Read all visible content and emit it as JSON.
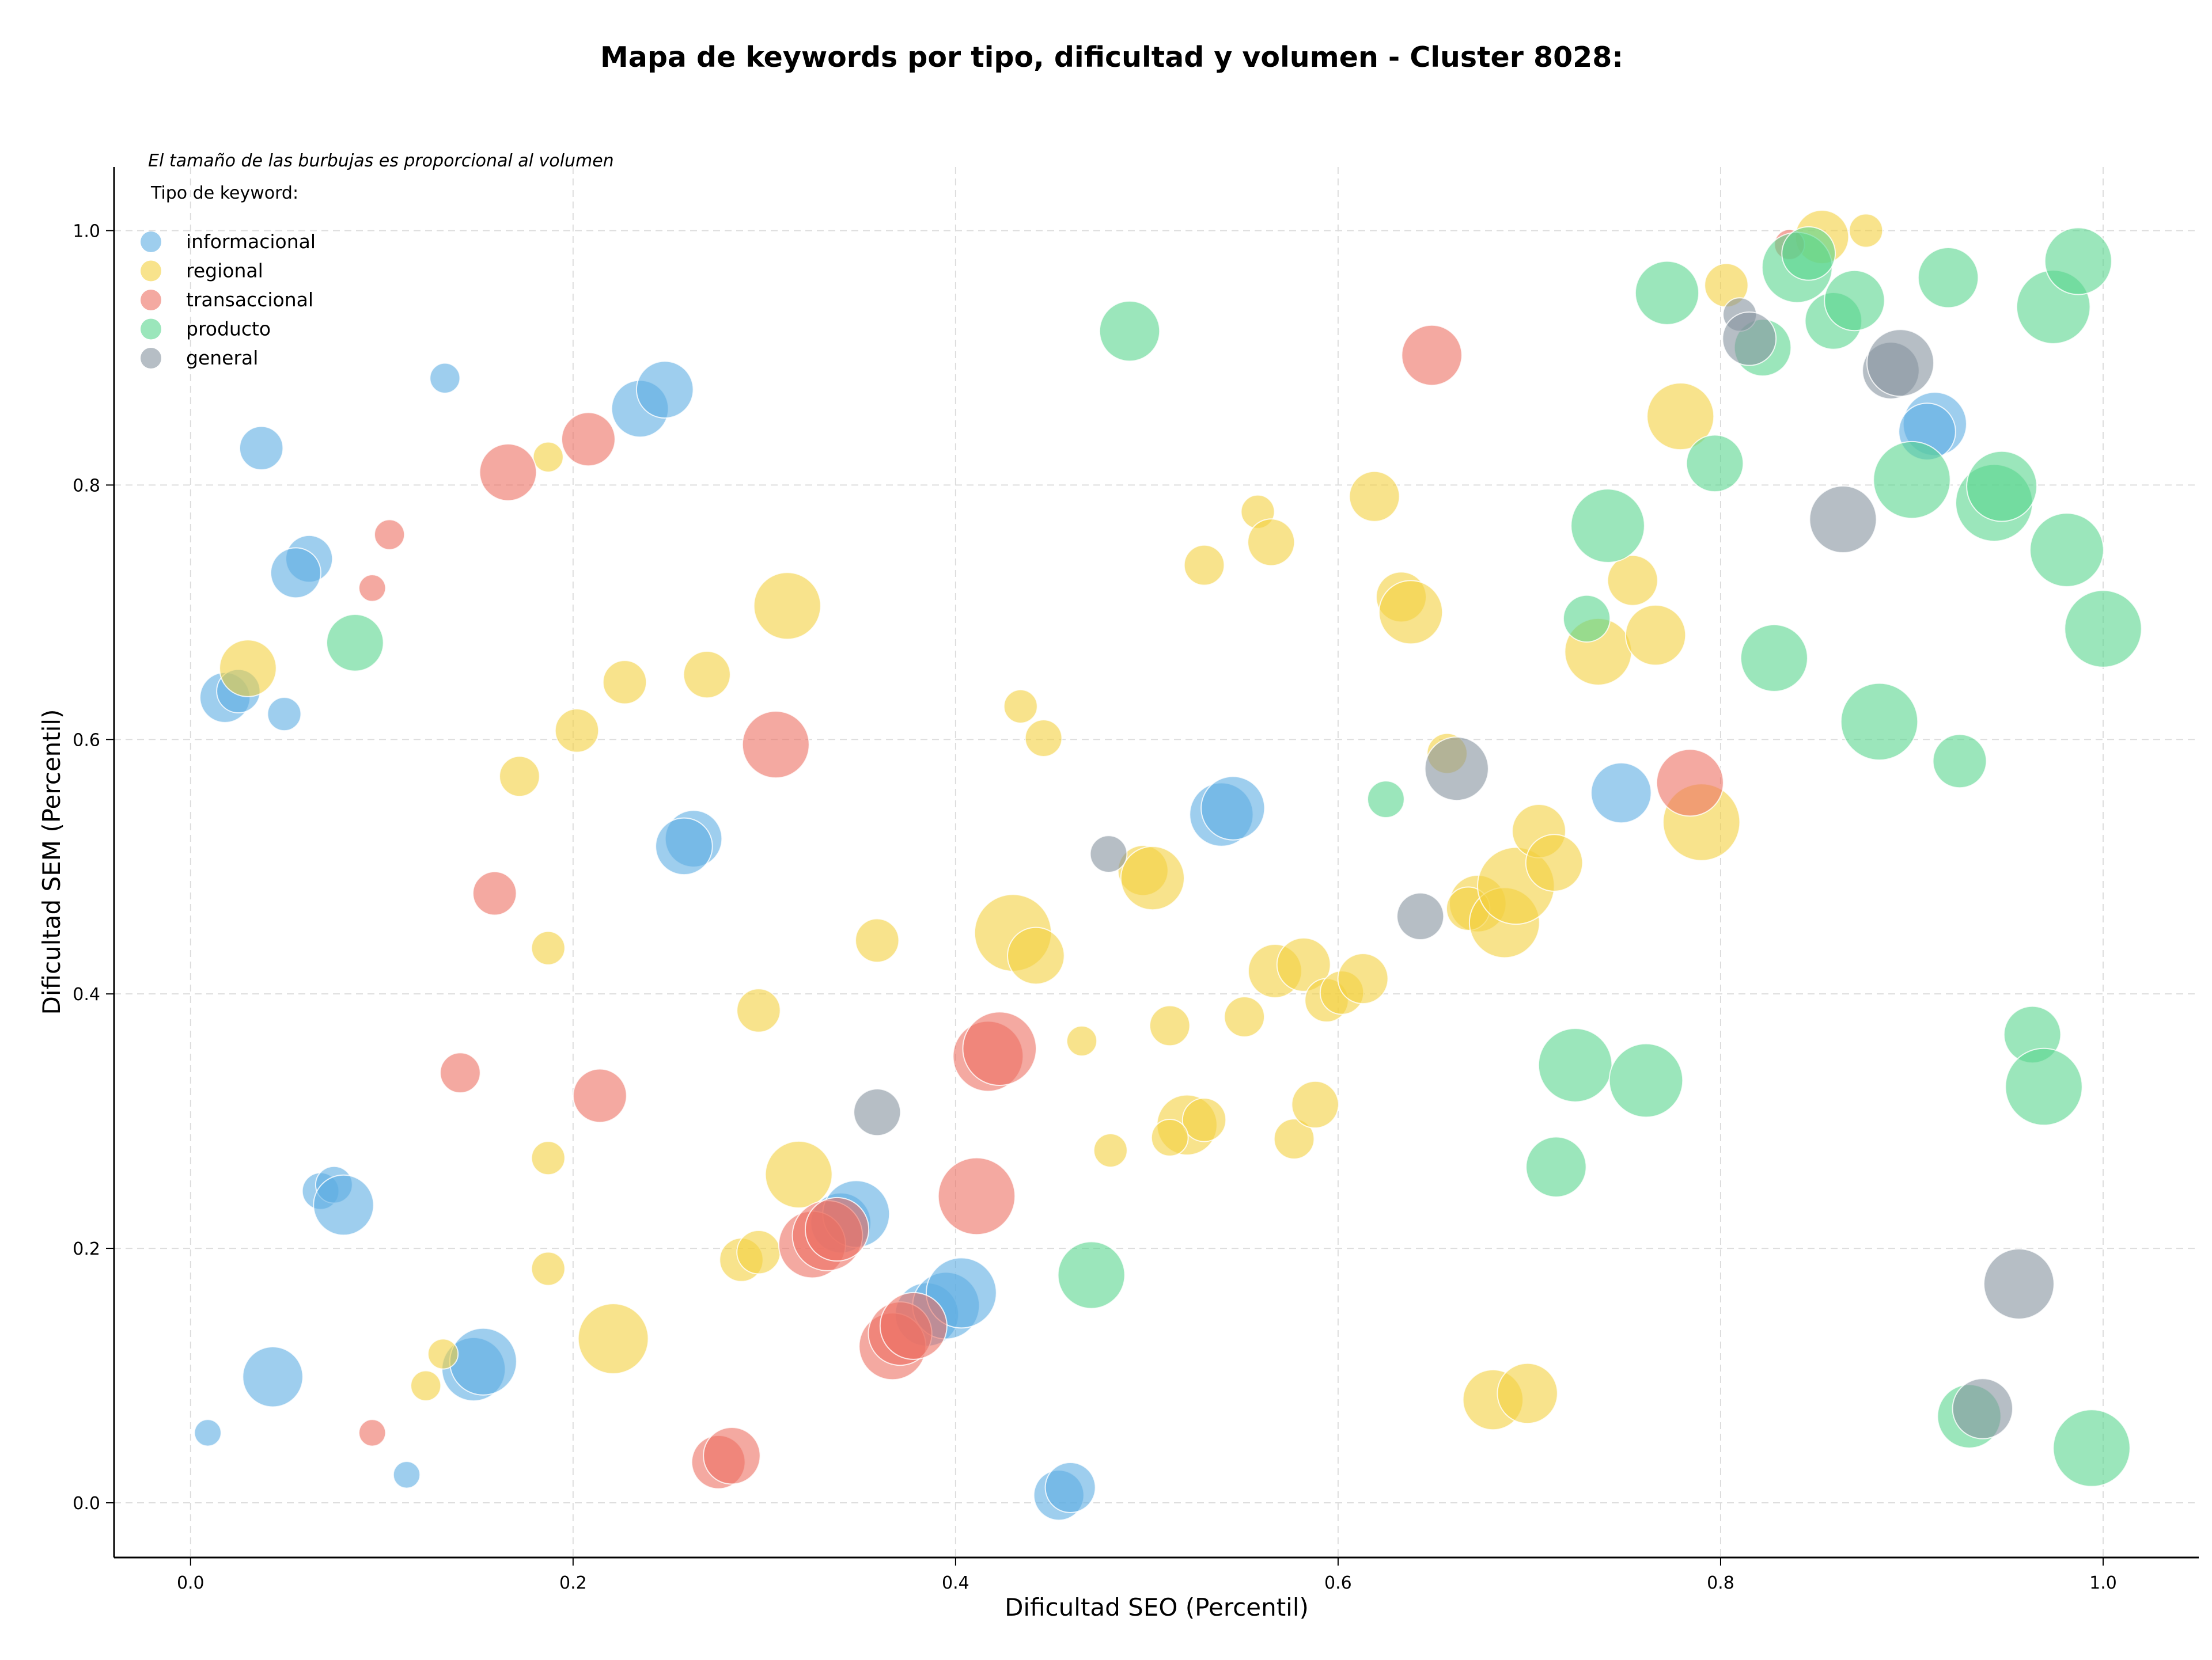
{
  "chart_data": {
    "type": "scatter",
    "title": "Mapa de keywords por tipo, dificultad y volumen - Cluster 8028:",
    "xlabel": "Dificultad SEO (Percentil)",
    "ylabel": "Dificultad SEM (Percentil)",
    "xlim": [
      -0.04,
      1.05
    ],
    "ylim": [
      -0.043,
      1.05
    ],
    "xticks": [
      0.0,
      0.2,
      0.4,
      0.6,
      0.8,
      1.0
    ],
    "yticks": [
      0.0,
      0.2,
      0.4,
      0.6,
      0.8,
      1.0
    ],
    "xtick_labels": [
      "0.0",
      "0.2",
      "0.4",
      "0.6",
      "0.8",
      "1.0"
    ],
    "ytick_labels": [
      "0.0",
      "0.2",
      "0.4",
      "0.6",
      "0.8",
      "1.0"
    ],
    "grid": true,
    "legend": {
      "placement": "top-left",
      "note": "El tamaño de las burbujas es proporcional al volumen",
      "title": "Tipo de keyword:"
    },
    "series": [
      {
        "name": "informacional",
        "color": "#5DADE2",
        "points": [
          [
            0.133,
            0.884,
            18
          ],
          [
            0.037,
            0.829,
            26
          ],
          [
            0.062,
            0.742,
            28
          ],
          [
            0.055,
            0.731,
            30
          ],
          [
            0.018,
            0.633,
            30
          ],
          [
            0.025,
            0.638,
            26
          ],
          [
            0.049,
            0.62,
            20
          ],
          [
            0.235,
            0.86,
            34
          ],
          [
            0.248,
            0.875,
            34
          ],
          [
            0.263,
            0.522,
            34
          ],
          [
            0.258,
            0.516,
            34
          ],
          [
            0.539,
            0.541,
            38
          ],
          [
            0.545,
            0.546,
            38
          ],
          [
            0.748,
            0.558,
            36
          ],
          [
            0.912,
            0.848,
            38
          ],
          [
            0.908,
            0.842,
            34
          ],
          [
            0.068,
            0.245,
            22
          ],
          [
            0.075,
            0.25,
            22
          ],
          [
            0.08,
            0.234,
            36
          ],
          [
            0.043,
            0.099,
            36
          ],
          [
            0.148,
            0.105,
            38
          ],
          [
            0.153,
            0.111,
            40
          ],
          [
            0.009,
            0.055,
            16
          ],
          [
            0.113,
            0.022,
            16
          ],
          [
            0.34,
            0.22,
            36
          ],
          [
            0.348,
            0.227,
            40
          ],
          [
            0.385,
            0.148,
            38
          ],
          [
            0.395,
            0.155,
            40
          ],
          [
            0.403,
            0.165,
            42
          ],
          [
            0.454,
            0.006,
            30
          ],
          [
            0.46,
            0.012,
            30
          ]
        ]
      },
      {
        "name": "regional",
        "color": "#F4D03F",
        "points": [
          [
            0.187,
            0.822,
            18
          ],
          [
            0.03,
            0.656,
            34
          ],
          [
            0.312,
            0.705,
            40
          ],
          [
            0.227,
            0.645,
            26
          ],
          [
            0.27,
            0.651,
            28
          ],
          [
            0.202,
            0.607,
            26
          ],
          [
            0.172,
            0.571,
            24
          ],
          [
            0.187,
            0.436,
            20
          ],
          [
            0.359,
            0.442,
            26
          ],
          [
            0.297,
            0.387,
            26
          ],
          [
            0.187,
            0.271,
            20
          ],
          [
            0.187,
            0.184,
            20
          ],
          [
            0.132,
            0.117,
            18
          ],
          [
            0.123,
            0.092,
            18
          ],
          [
            0.221,
            0.129,
            42
          ],
          [
            0.318,
            0.258,
            40
          ],
          [
            0.288,
            0.191,
            26
          ],
          [
            0.297,
            0.197,
            26
          ],
          [
            0.434,
            0.626,
            20
          ],
          [
            0.446,
            0.601,
            22
          ],
          [
            0.43,
            0.448,
            46
          ],
          [
            0.442,
            0.43,
            34
          ],
          [
            0.466,
            0.363,
            18
          ],
          [
            0.481,
            0.277,
            20
          ],
          [
            0.498,
            0.497,
            30
          ],
          [
            0.503,
            0.491,
            38
          ],
          [
            0.512,
            0.375,
            24
          ],
          [
            0.521,
            0.297,
            36
          ],
          [
            0.53,
            0.301,
            26
          ],
          [
            0.512,
            0.287,
            22
          ],
          [
            0.53,
            0.737,
            24
          ],
          [
            0.558,
            0.779,
            20
          ],
          [
            0.565,
            0.755,
            28
          ],
          [
            0.551,
            0.382,
            24
          ],
          [
            0.567,
            0.418,
            32
          ],
          [
            0.582,
            0.423,
            32
          ],
          [
            0.577,
            0.286,
            24
          ],
          [
            0.588,
            0.313,
            28
          ],
          [
            0.594,
            0.395,
            26
          ],
          [
            0.602,
            0.401,
            26
          ],
          [
            0.613,
            0.412,
            30
          ],
          [
            0.619,
            0.791,
            30
          ],
          [
            0.633,
            0.712,
            30
          ],
          [
            0.638,
            0.7,
            38
          ],
          [
            0.657,
            0.589,
            24
          ],
          [
            0.673,
            0.471,
            34
          ],
          [
            0.668,
            0.467,
            26
          ],
          [
            0.687,
            0.456,
            42
          ],
          [
            0.693,
            0.485,
            46
          ],
          [
            0.705,
            0.528,
            32
          ],
          [
            0.713,
            0.503,
            34
          ],
          [
            0.681,
            0.081,
            36
          ],
          [
            0.699,
            0.086,
            36
          ],
          [
            0.736,
            0.669,
            40
          ],
          [
            0.754,
            0.725,
            30
          ],
          [
            0.766,
            0.682,
            36
          ],
          [
            0.779,
            0.854,
            40
          ],
          [
            0.79,
            0.535,
            46
          ],
          [
            0.803,
            0.957,
            26
          ],
          [
            0.853,
            0.995,
            32
          ],
          [
            0.876,
            1.0,
            20
          ]
        ]
      },
      {
        "name": "transaccional",
        "color": "#EC7063",
        "points": [
          [
            0.166,
            0.81,
            34
          ],
          [
            0.208,
            0.836,
            32
          ],
          [
            0.104,
            0.761,
            18
          ],
          [
            0.095,
            0.719,
            16
          ],
          [
            0.306,
            0.596,
            40
          ],
          [
            0.159,
            0.479,
            26
          ],
          [
            0.141,
            0.338,
            24
          ],
          [
            0.214,
            0.32,
            32
          ],
          [
            0.095,
            0.055,
            16
          ],
          [
            0.276,
            0.032,
            32
          ],
          [
            0.283,
            0.037,
            34
          ],
          [
            0.325,
            0.203,
            40
          ],
          [
            0.333,
            0.21,
            42
          ],
          [
            0.338,
            0.215,
            38
          ],
          [
            0.367,
            0.123,
            40
          ],
          [
            0.371,
            0.133,
            38
          ],
          [
            0.378,
            0.139,
            40
          ],
          [
            0.417,
            0.351,
            42
          ],
          [
            0.423,
            0.357,
            44
          ],
          [
            0.411,
            0.241,
            46
          ],
          [
            0.649,
            0.902,
            36
          ],
          [
            0.784,
            0.566,
            40
          ],
          [
            0.836,
            0.989,
            18
          ]
        ]
      },
      {
        "name": "producto",
        "color": "#58D68D",
        "points": [
          [
            0.086,
            0.676,
            34
          ],
          [
            0.491,
            0.921,
            36
          ],
          [
            0.471,
            0.179,
            40
          ],
          [
            0.625,
            0.553,
            22
          ],
          [
            0.73,
            0.695,
            28
          ],
          [
            0.741,
            0.768,
            44
          ],
          [
            0.714,
            0.264,
            36
          ],
          [
            0.724,
            0.344,
            44
          ],
          [
            0.761,
            0.332,
            44
          ],
          [
            0.772,
            0.951,
            38
          ],
          [
            0.797,
            0.817,
            34
          ],
          [
            0.822,
            0.908,
            34
          ],
          [
            0.828,
            0.664,
            40
          ],
          [
            0.84,
            0.971,
            42
          ],
          [
            0.846,
            0.982,
            32
          ],
          [
            0.859,
            0.929,
            34
          ],
          [
            0.87,
            0.945,
            36
          ],
          [
            0.883,
            0.614,
            46
          ],
          [
            0.9,
            0.804,
            46
          ],
          [
            0.919,
            0.963,
            36
          ],
          [
            0.925,
            0.583,
            32
          ],
          [
            0.943,
            0.786,
            46
          ],
          [
            0.947,
            0.799,
            42
          ],
          [
            0.93,
            0.068,
            38
          ],
          [
            0.963,
            0.368,
            34
          ],
          [
            0.969,
            0.327,
            46
          ],
          [
            0.974,
            0.94,
            44
          ],
          [
            0.981,
            0.749,
            44
          ],
          [
            0.987,
            0.976,
            40
          ],
          [
            0.994,
            0.043,
            46
          ],
          [
            1.0,
            0.687,
            46
          ]
        ]
      },
      {
        "name": "general",
        "color": "#85929E",
        "points": [
          [
            0.359,
            0.307,
            28
          ],
          [
            0.48,
            0.51,
            22
          ],
          [
            0.643,
            0.461,
            28
          ],
          [
            0.662,
            0.577,
            38
          ],
          [
            0.81,
            0.934,
            20
          ],
          [
            0.815,
            0.915,
            32
          ],
          [
            0.864,
            0.773,
            40
          ],
          [
            0.889,
            0.89,
            34
          ],
          [
            0.894,
            0.896,
            40
          ],
          [
            0.937,
            0.074,
            36
          ],
          [
            0.956,
            0.172,
            42
          ]
        ]
      }
    ]
  }
}
